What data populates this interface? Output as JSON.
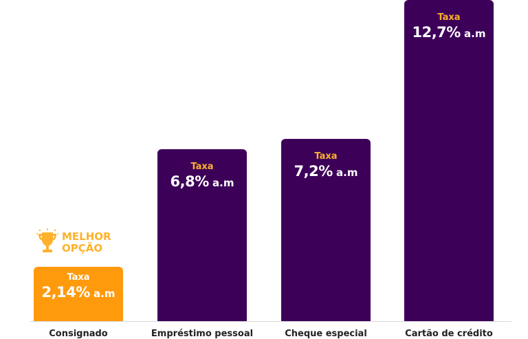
{
  "chart_data": {
    "type": "bar",
    "categories": [
      "Consignado",
      "Empréstimo pessoal",
      "Cheque especial",
      "Cartão de crédito"
    ],
    "values": [
      2.14,
      6.8,
      7.2,
      12.7
    ],
    "value_labels": [
      "2,14%",
      "6,8%",
      "7,2%",
      "12,7%"
    ],
    "unit": "a.m",
    "bar_kicker": "Taxa",
    "highlight_index": 0,
    "badge": {
      "line1": "MELHOR",
      "line2": "OPÇÃO",
      "icon": "trophy-icon"
    },
    "colors": {
      "bar": "#3d0059",
      "highlight_bar": "#ff9a0d",
      "kicker": "#ffb12b",
      "kicker_on_highlight": "#ffffff",
      "badge": "#ffb12b"
    },
    "ylim": [
      0,
      12.7
    ],
    "grid": false,
    "legend": "none"
  }
}
